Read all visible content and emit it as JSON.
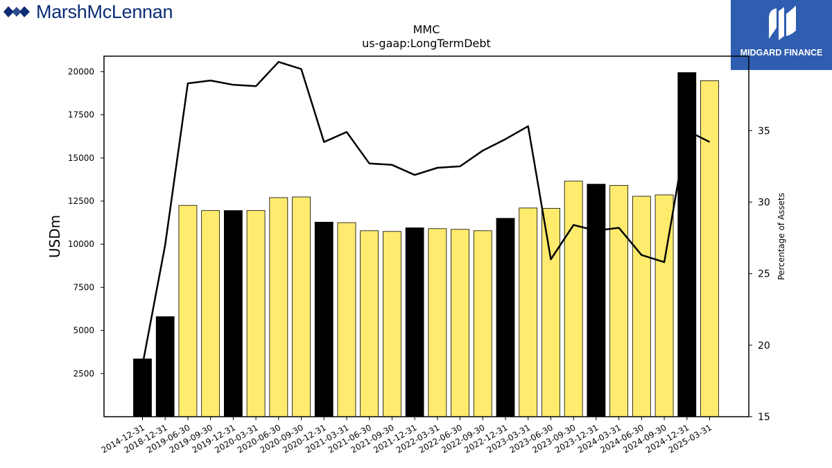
{
  "logos": {
    "left_brand": "MarshMcLennan",
    "right_brand": "MIDGARD FINANCE",
    "left_brand_color": "#0c2c74",
    "right_brand_bg": "#2f5db0"
  },
  "chart_data": {
    "type": "bar",
    "title": "MMC",
    "subtitle": "us-gaap:LongTermDebt",
    "ylabel": "USDm",
    "y2label": "Percentage of Assets",
    "ylim": [
      0,
      20900
    ],
    "y2lim": [
      15,
      40.2
    ],
    "yticks": [
      2500,
      5000,
      7500,
      10000,
      12500,
      15000,
      17500,
      20000
    ],
    "y2ticks": [
      15,
      20,
      25,
      30,
      35
    ],
    "categories": [
      "2014-12-31",
      "2018-12-31",
      "2019-06-30",
      "2019-09-30",
      "2019-12-31",
      "2020-03-31",
      "2020-06-30",
      "2020-09-30",
      "2020-12-31",
      "2021-03-31",
      "2021-06-30",
      "2021-09-30",
      "2021-12-31",
      "2022-03-31",
      "2022-06-30",
      "2022-09-30",
      "2022-12-31",
      "2023-03-31",
      "2023-06-30",
      "2023-09-30",
      "2023-12-31",
      "2024-03-31",
      "2024-06-30",
      "2024-09-30",
      "2024-12-31",
      "2025-03-31"
    ],
    "series": [
      {
        "type": "bar",
        "values": [
          3350,
          5800,
          12250,
          11950,
          11950,
          11950,
          12700,
          12740,
          11280,
          11250,
          10780,
          10740,
          10950,
          10900,
          10860,
          10780,
          11500,
          12100,
          12080,
          13660,
          13480,
          13410,
          12780,
          12860,
          19950,
          19480
        ],
        "period_types": [
          "FY",
          "FY",
          "Q",
          "Q",
          "FY",
          "Q",
          "Q",
          "Q",
          "FY",
          "Q",
          "Q",
          "Q",
          "FY",
          "Q",
          "Q",
          "Q",
          "FY",
          "Q",
          "Q",
          "Q",
          "FY",
          "Q",
          "Q",
          "Q",
          "FY",
          "Q"
        ],
        "colors": {
          "FY": "#000000",
          "Q": "#ffeb6e"
        }
      },
      {
        "type": "line",
        "axis": "right",
        "values": [
          18.6,
          27.0,
          38.3,
          38.5,
          38.2,
          38.1,
          39.8,
          39.3,
          34.2,
          34.9,
          32.7,
          32.6,
          31.9,
          32.4,
          32.5,
          33.6,
          34.4,
          35.3,
          26.0,
          28.4,
          28.0,
          28.2,
          26.3,
          25.8,
          35.0,
          34.2
        ],
        "color": "#000000"
      }
    ],
    "grid": false,
    "legend": "none"
  }
}
